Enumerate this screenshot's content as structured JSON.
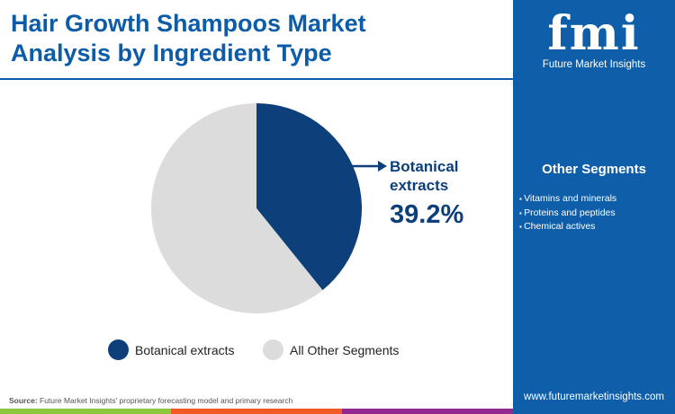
{
  "title": "Hair Growth Shampoos Market Analysis by Ingredient Type",
  "logo": {
    "mark": "fmi",
    "name": "Future Market Insights"
  },
  "side": {
    "heading": "Other Segments",
    "items": [
      "Vitamins and minerals",
      "Proteins and peptides",
      "Chemical actives"
    ],
    "url": "www.futuremarketinsights.com"
  },
  "source": {
    "label": "Source:",
    "text": " Future Market Insights' proprietary forecasting model and primary research"
  },
  "chart_data": {
    "type": "pie",
    "categories": [
      "Botanical extracts",
      "All Other Segments"
    ],
    "values": [
      39.2,
      60.8
    ],
    "colors": [
      "#0d3f7a",
      "#dcdcdc"
    ],
    "callout": {
      "label": "Botanical extracts",
      "value": "39.2%"
    },
    "legend": [
      "Botanical extracts",
      "All Other Segments"
    ],
    "legend_position": "bottom"
  }
}
